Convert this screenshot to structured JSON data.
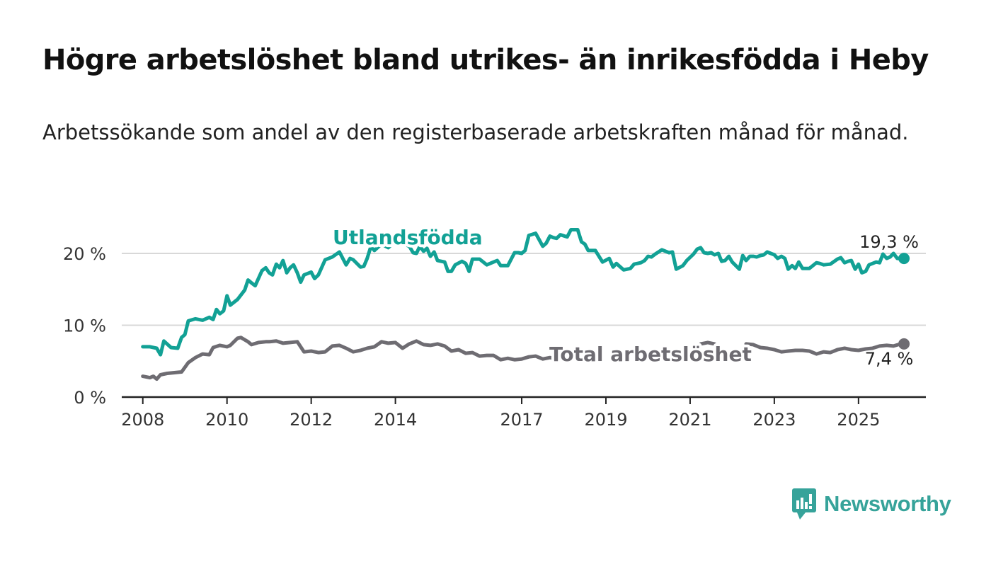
{
  "title": "Högre arbetslöshet bland utrikes- än inrikesfödda i Heby",
  "subtitle": "Arbetssökande som andel av den registerbaserade arbetskraften månad för månad.",
  "brand": "Newsworthy",
  "colors": {
    "foreign": "#12a195",
    "total": "#6e6c72",
    "axis": "#222222",
    "grid": "#d8d8d8"
  },
  "chart_data": {
    "type": "line",
    "x_unit": "year",
    "xlim": [
      2007.5,
      2026.6
    ],
    "ylim": [
      0,
      22
    ],
    "y_ticks": [
      0,
      10,
      20
    ],
    "y_tick_labels": [
      "0 %",
      "10 %",
      "20 %"
    ],
    "x_ticks": [
      2008,
      2010,
      2012,
      2014,
      2017,
      2019,
      2021,
      2023,
      2025
    ],
    "x_tick_labels": [
      "2008",
      "2010",
      "2012",
      "2014",
      "2017",
      "2019",
      "2021",
      "2023",
      "2025"
    ],
    "series": [
      {
        "name": "Utlandsfödda",
        "end_label": "19,3 %",
        "points": [
          [
            2008.0,
            7.0
          ],
          [
            2008.17,
            7.0
          ],
          [
            2008.33,
            6.8
          ],
          [
            2008.42,
            5.9
          ],
          [
            2008.5,
            7.8
          ],
          [
            2008.67,
            6.9
          ],
          [
            2008.83,
            6.8
          ],
          [
            2008.92,
            8.3
          ],
          [
            2009.0,
            8.7
          ],
          [
            2009.08,
            10.6
          ],
          [
            2009.25,
            10.9
          ],
          [
            2009.42,
            10.7
          ],
          [
            2009.58,
            11.1
          ],
          [
            2009.67,
            10.8
          ],
          [
            2009.75,
            12.2
          ],
          [
            2009.83,
            11.6
          ],
          [
            2009.92,
            12.0
          ],
          [
            2010.0,
            14.1
          ],
          [
            2010.08,
            12.8
          ],
          [
            2010.25,
            13.6
          ],
          [
            2010.42,
            14.9
          ],
          [
            2010.5,
            16.3
          ],
          [
            2010.58,
            15.9
          ],
          [
            2010.67,
            15.5
          ],
          [
            2010.83,
            17.6
          ],
          [
            2010.92,
            18.0
          ],
          [
            2011.0,
            17.3
          ],
          [
            2011.08,
            17.0
          ],
          [
            2011.17,
            18.5
          ],
          [
            2011.25,
            18.0
          ],
          [
            2011.33,
            19.0
          ],
          [
            2011.42,
            17.3
          ],
          [
            2011.5,
            18.0
          ],
          [
            2011.58,
            18.4
          ],
          [
            2011.67,
            17.3
          ],
          [
            2011.75,
            16.0
          ],
          [
            2011.83,
            17.0
          ],
          [
            2012.0,
            17.4
          ],
          [
            2012.08,
            16.5
          ],
          [
            2012.17,
            17.0
          ],
          [
            2012.33,
            19.1
          ],
          [
            2012.5,
            19.5
          ],
          [
            2012.67,
            20.2
          ],
          [
            2012.83,
            18.4
          ],
          [
            2012.92,
            19.3
          ],
          [
            2013.0,
            19.1
          ],
          [
            2013.17,
            18.1
          ],
          [
            2013.25,
            18.2
          ],
          [
            2013.33,
            19.3
          ],
          [
            2013.42,
            21.0
          ],
          [
            2013.5,
            20.4
          ],
          [
            2013.67,
            21.3
          ],
          [
            2013.83,
            20.8
          ],
          [
            2014.0,
            21.7
          ],
          [
            2014.17,
            21.4
          ],
          [
            2014.33,
            21.0
          ],
          [
            2014.42,
            20.1
          ],
          [
            2014.5,
            20.0
          ],
          [
            2014.58,
            21.0
          ],
          [
            2014.67,
            20.3
          ],
          [
            2014.75,
            20.7
          ],
          [
            2014.83,
            19.6
          ],
          [
            2014.92,
            20.2
          ],
          [
            2015.0,
            19.0
          ],
          [
            2015.17,
            18.8
          ],
          [
            2015.25,
            17.5
          ],
          [
            2015.33,
            17.5
          ],
          [
            2015.42,
            18.4
          ],
          [
            2015.58,
            18.9
          ],
          [
            2015.67,
            18.6
          ],
          [
            2015.75,
            17.5
          ],
          [
            2015.83,
            19.2
          ],
          [
            2016.0,
            19.2
          ],
          [
            2016.17,
            18.4
          ],
          [
            2016.33,
            18.8
          ],
          [
            2016.42,
            19.0
          ],
          [
            2016.5,
            18.3
          ],
          [
            2016.67,
            18.3
          ],
          [
            2016.83,
            20.1
          ],
          [
            2016.92,
            20.1
          ],
          [
            2017.0,
            20.0
          ],
          [
            2017.08,
            20.4
          ],
          [
            2017.17,
            22.5
          ],
          [
            2017.33,
            22.8
          ],
          [
            2017.5,
            21.0
          ],
          [
            2017.58,
            21.4
          ],
          [
            2017.67,
            22.4
          ],
          [
            2017.75,
            22.2
          ],
          [
            2017.83,
            22.1
          ],
          [
            2017.92,
            22.6
          ],
          [
            2018.08,
            22.3
          ],
          [
            2018.17,
            23.3
          ],
          [
            2018.33,
            23.3
          ],
          [
            2018.42,
            21.6
          ],
          [
            2018.5,
            21.3
          ],
          [
            2018.58,
            20.4
          ],
          [
            2018.75,
            20.4
          ],
          [
            2018.92,
            18.8
          ],
          [
            2019.08,
            19.3
          ],
          [
            2019.17,
            18.1
          ],
          [
            2019.25,
            18.6
          ],
          [
            2019.42,
            17.7
          ],
          [
            2019.58,
            17.9
          ],
          [
            2019.67,
            18.5
          ],
          [
            2019.83,
            18.7
          ],
          [
            2019.92,
            19.0
          ],
          [
            2020.0,
            19.6
          ],
          [
            2020.08,
            19.5
          ],
          [
            2020.17,
            19.9
          ],
          [
            2020.33,
            20.5
          ],
          [
            2020.5,
            20.1
          ],
          [
            2020.58,
            20.2
          ],
          [
            2020.67,
            17.8
          ],
          [
            2020.83,
            18.3
          ],
          [
            2020.92,
            19.0
          ],
          [
            2021.08,
            19.9
          ],
          [
            2021.17,
            20.6
          ],
          [
            2021.25,
            20.8
          ],
          [
            2021.33,
            20.1
          ],
          [
            2021.42,
            20.0
          ],
          [
            2021.5,
            20.1
          ],
          [
            2021.58,
            19.8
          ],
          [
            2021.67,
            20.0
          ],
          [
            2021.75,
            18.9
          ],
          [
            2021.83,
            19.0
          ],
          [
            2021.92,
            19.6
          ],
          [
            2022.0,
            18.8
          ],
          [
            2022.17,
            17.8
          ],
          [
            2022.25,
            19.7
          ],
          [
            2022.33,
            19.0
          ],
          [
            2022.42,
            19.6
          ],
          [
            2022.5,
            19.6
          ],
          [
            2022.58,
            19.5
          ],
          [
            2022.67,
            19.7
          ],
          [
            2022.75,
            19.8
          ],
          [
            2022.83,
            20.2
          ],
          [
            2023.0,
            19.8
          ],
          [
            2023.08,
            19.3
          ],
          [
            2023.17,
            19.6
          ],
          [
            2023.25,
            19.3
          ],
          [
            2023.33,
            17.8
          ],
          [
            2023.42,
            18.3
          ],
          [
            2023.5,
            17.9
          ],
          [
            2023.58,
            18.8
          ],
          [
            2023.67,
            17.9
          ],
          [
            2023.83,
            17.9
          ],
          [
            2024.0,
            18.7
          ],
          [
            2024.08,
            18.6
          ],
          [
            2024.17,
            18.4
          ],
          [
            2024.33,
            18.5
          ],
          [
            2024.5,
            19.2
          ],
          [
            2024.58,
            19.4
          ],
          [
            2024.67,
            18.7
          ],
          [
            2024.75,
            18.9
          ],
          [
            2024.83,
            19.0
          ],
          [
            2024.92,
            17.8
          ],
          [
            2025.0,
            18.5
          ],
          [
            2025.08,
            17.3
          ],
          [
            2025.17,
            17.5
          ],
          [
            2025.25,
            18.4
          ],
          [
            2025.42,
            18.8
          ],
          [
            2025.5,
            18.7
          ],
          [
            2025.58,
            19.9
          ],
          [
            2025.67,
            19.3
          ],
          [
            2025.75,
            19.5
          ],
          [
            2025.83,
            20.0
          ],
          [
            2025.92,
            19.3
          ],
          [
            2026.08,
            19.3
          ]
        ]
      },
      {
        "name": "Total arbetslöshet",
        "end_label": "7,4 %",
        "points": [
          [
            2008.0,
            2.9
          ],
          [
            2008.17,
            2.7
          ],
          [
            2008.25,
            2.9
          ],
          [
            2008.33,
            2.5
          ],
          [
            2008.42,
            3.1
          ],
          [
            2008.58,
            3.3
          ],
          [
            2008.75,
            3.4
          ],
          [
            2008.92,
            3.5
          ],
          [
            2009.08,
            4.8
          ],
          [
            2009.25,
            5.5
          ],
          [
            2009.42,
            6.0
          ],
          [
            2009.58,
            5.9
          ],
          [
            2009.67,
            6.9
          ],
          [
            2009.83,
            7.2
          ],
          [
            2010.0,
            7.0
          ],
          [
            2010.08,
            7.2
          ],
          [
            2010.25,
            8.2
          ],
          [
            2010.33,
            8.3
          ],
          [
            2010.5,
            7.7
          ],
          [
            2010.58,
            7.3
          ],
          [
            2010.75,
            7.6
          ],
          [
            2010.92,
            7.7
          ],
          [
            2011.0,
            7.7
          ],
          [
            2011.17,
            7.8
          ],
          [
            2011.33,
            7.5
          ],
          [
            2011.5,
            7.6
          ],
          [
            2011.67,
            7.7
          ],
          [
            2011.83,
            6.3
          ],
          [
            2012.0,
            6.4
          ],
          [
            2012.17,
            6.2
          ],
          [
            2012.33,
            6.3
          ],
          [
            2012.5,
            7.1
          ],
          [
            2012.67,
            7.2
          ],
          [
            2012.83,
            6.8
          ],
          [
            2013.0,
            6.3
          ],
          [
            2013.17,
            6.5
          ],
          [
            2013.33,
            6.8
          ],
          [
            2013.5,
            7.0
          ],
          [
            2013.67,
            7.7
          ],
          [
            2013.83,
            7.5
          ],
          [
            2014.0,
            7.6
          ],
          [
            2014.17,
            6.8
          ],
          [
            2014.33,
            7.4
          ],
          [
            2014.5,
            7.8
          ],
          [
            2014.67,
            7.3
          ],
          [
            2014.83,
            7.2
          ],
          [
            2015.0,
            7.4
          ],
          [
            2015.17,
            7.1
          ],
          [
            2015.33,
            6.4
          ],
          [
            2015.5,
            6.6
          ],
          [
            2015.67,
            6.1
          ],
          [
            2015.83,
            6.2
          ],
          [
            2016.0,
            5.7
          ],
          [
            2016.17,
            5.8
          ],
          [
            2016.33,
            5.8
          ],
          [
            2016.5,
            5.2
          ],
          [
            2016.67,
            5.4
          ],
          [
            2016.83,
            5.2
          ],
          [
            2017.0,
            5.3
          ],
          [
            2017.17,
            5.6
          ],
          [
            2017.33,
            5.7
          ],
          [
            2017.5,
            5.3
          ],
          [
            2017.67,
            5.5
          ],
          [
            2017.83,
            5.3
          ],
          [
            2018.0,
            5.4
          ],
          [
            2018.17,
            5.4
          ],
          [
            2018.33,
            5.3
          ]
        ]
      }
    ],
    "total_visible_tail": [
      [
        2022.33,
        7.4
      ],
      [
        2022.5,
        7.3
      ],
      [
        2022.67,
        6.9
      ],
      [
        2022.83,
        6.8
      ],
      [
        2023.0,
        6.6
      ],
      [
        2023.17,
        6.3
      ],
      [
        2023.33,
        6.4
      ],
      [
        2023.5,
        6.5
      ],
      [
        2023.67,
        6.5
      ],
      [
        2023.83,
        6.4
      ],
      [
        2024.0,
        6.0
      ],
      [
        2024.17,
        6.3
      ],
      [
        2024.33,
        6.2
      ],
      [
        2024.5,
        6.6
      ],
      [
        2024.67,
        6.8
      ],
      [
        2024.83,
        6.6
      ],
      [
        2025.0,
        6.5
      ],
      [
        2025.17,
        6.7
      ],
      [
        2025.33,
        6.8
      ],
      [
        2025.5,
        7.1
      ],
      [
        2025.67,
        7.2
      ],
      [
        2025.83,
        7.1
      ],
      [
        2026.0,
        7.4
      ],
      [
        2026.08,
        7.4
      ]
    ],
    "total_visible_mid": [
      [
        2021.25,
        7.4
      ],
      [
        2021.42,
        7.6
      ],
      [
        2021.58,
        7.4
      ]
    ]
  }
}
